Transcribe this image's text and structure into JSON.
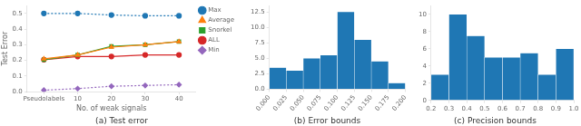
{
  "chart_data": [
    {
      "type": "line",
      "title": "(a) Test error",
      "xlabel": "No. of weak signals",
      "ylabel": "Test Error",
      "categories": [
        "Pseudolabels",
        "10",
        "20",
        "30",
        "40"
      ],
      "series": [
        {
          "name": "Max",
          "color": "#1f77b4",
          "line_style": "dotted",
          "marker": "circle",
          "values": [
            0.5,
            0.5,
            0.49,
            0.485,
            0.485
          ]
        },
        {
          "name": "Average",
          "color": "#ff7f0e",
          "line_style": "solid",
          "marker": "triangle",
          "values": [
            0.21,
            0.235,
            0.285,
            0.3,
            0.32
          ]
        },
        {
          "name": "Snorkel",
          "color": "#2ca02c",
          "line_style": "solid",
          "marker": "square",
          "values": [
            0.205,
            0.235,
            0.29,
            0.3,
            0.32
          ]
        },
        {
          "name": "ALL",
          "color": "#d62728",
          "line_style": "solid",
          "marker": "circle",
          "values": [
            0.205,
            0.225,
            0.225,
            0.235,
            0.235
          ]
        },
        {
          "name": "Min",
          "color": "#9467bd",
          "line_style": "dotted",
          "marker": "diamond",
          "values": [
            0.01,
            0.02,
            0.035,
            0.04,
            0.045
          ]
        }
      ],
      "ylim": [
        0.0,
        0.55
      ],
      "yticks": [
        {
          "value": 0,
          "label": "0.0"
        },
        0.1,
        0.2,
        0.3,
        0.4,
        0.5
      ],
      "grid": false,
      "legend": "right"
    },
    {
      "type": "histogram",
      "title": "(b) Error bounds",
      "bins": [
        0.0,
        0.025,
        0.05,
        0.075,
        0.1,
        0.125,
        0.15,
        0.175,
        0.2
      ],
      "values": [
        3.5,
        3.0,
        5.0,
        5.5,
        12.5,
        8.0,
        4.5,
        1.0
      ],
      "color": "#1f77b4",
      "xlim": [
        0.0,
        0.2
      ],
      "xticks": [
        {
          "value": 0,
          "label": "0.000"
        },
        0.025,
        {
          "value": 0.05,
          "label": "0.050"
        },
        0.075,
        {
          "value": 0.1,
          "label": "0.100"
        },
        0.125,
        {
          "value": 0.15,
          "label": "0.150"
        },
        0.175,
        {
          "value": 0.2,
          "label": "0.200"
        }
      ],
      "ylim": [
        0,
        13.5
      ],
      "yticks": [
        {
          "value": 0,
          "label": "0.0"
        },
        2.5,
        {
          "value": 5,
          "label": "5.0"
        },
        7.5,
        {
          "value": 10,
          "label": "10.0"
        },
        12.5
      ],
      "grid": false
    },
    {
      "type": "histogram",
      "title": "(c) Precision bounds",
      "bins": [
        0.2,
        0.3,
        0.4,
        0.5,
        0.6,
        0.7,
        0.8,
        0.9,
        1.0
      ],
      "values": [
        3.0,
        10.0,
        7.5,
        5.0,
        5.0,
        5.5,
        3.0,
        6.0
      ],
      "color": "#1f77b4",
      "xlim": [
        0.2,
        1.0
      ],
      "xticks": [
        0.2,
        0.3,
        0.4,
        0.5,
        0.6,
        0.7,
        0.8,
        0.9,
        {
          "value": 1,
          "label": "1.0"
        }
      ],
      "ylim": [
        0,
        11
      ],
      "yticks": [
        0,
        2,
        4,
        6,
        8,
        10
      ],
      "grid": false
    }
  ]
}
